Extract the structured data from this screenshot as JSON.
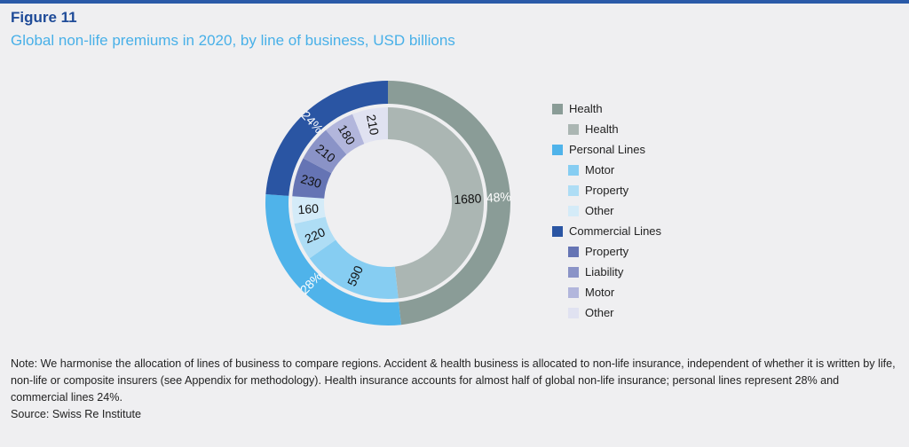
{
  "header": {
    "figure": "Figure 11",
    "subtitle": "Global non-life premiums in 2020, by line of business, USD billions"
  },
  "chart_data": {
    "type": "pie",
    "subtype": "nested-donut",
    "title": "Global non-life premiums in 2020, by line of business, USD billions",
    "outer": [
      {
        "name": "Health",
        "label": "48%",
        "color": "#8a9c97"
      },
      {
        "name": "Personal Lines",
        "label": "28%",
        "color": "#4fb3ea"
      },
      {
        "name": "Commercial Lines",
        "label": "24%",
        "color": "#2a55a3"
      }
    ],
    "inner": [
      {
        "group": "Health",
        "name": "Health",
        "value": 1680,
        "color": "#abb6b3"
      },
      {
        "group": "Personal Lines",
        "name": "Motor",
        "value": 590,
        "color": "#86cdf2"
      },
      {
        "group": "Personal Lines",
        "name": "Property",
        "value": 220,
        "color": "#aeddf5"
      },
      {
        "group": "Personal Lines",
        "name": "Other",
        "value": 160,
        "color": "#d4ebf8"
      },
      {
        "group": "Commercial Lines",
        "name": "Property",
        "value": 230,
        "color": "#6574b4"
      },
      {
        "group": "Commercial Lines",
        "name": "Liability",
        "value": 210,
        "color": "#8a93c7"
      },
      {
        "group": "Commercial Lines",
        "name": "Motor",
        "value": 180,
        "color": "#b2b6dc"
      },
      {
        "group": "Commercial Lines",
        "name": "Other",
        "value": 210,
        "color": "#e0e2f1"
      }
    ],
    "legend_position": "right"
  },
  "note": "Note: We harmonise the allocation of lines of business to compare regions. Accident & health business is allocated to non-life insurance, independent of whether it is written by life, non-life or composite insurers (see Appendix for methodology). Health insurance accounts for almost half of global non-life insurance; personal lines represent 28% and commercial lines 24%.",
  "source": "Source: Swiss Re Institute"
}
